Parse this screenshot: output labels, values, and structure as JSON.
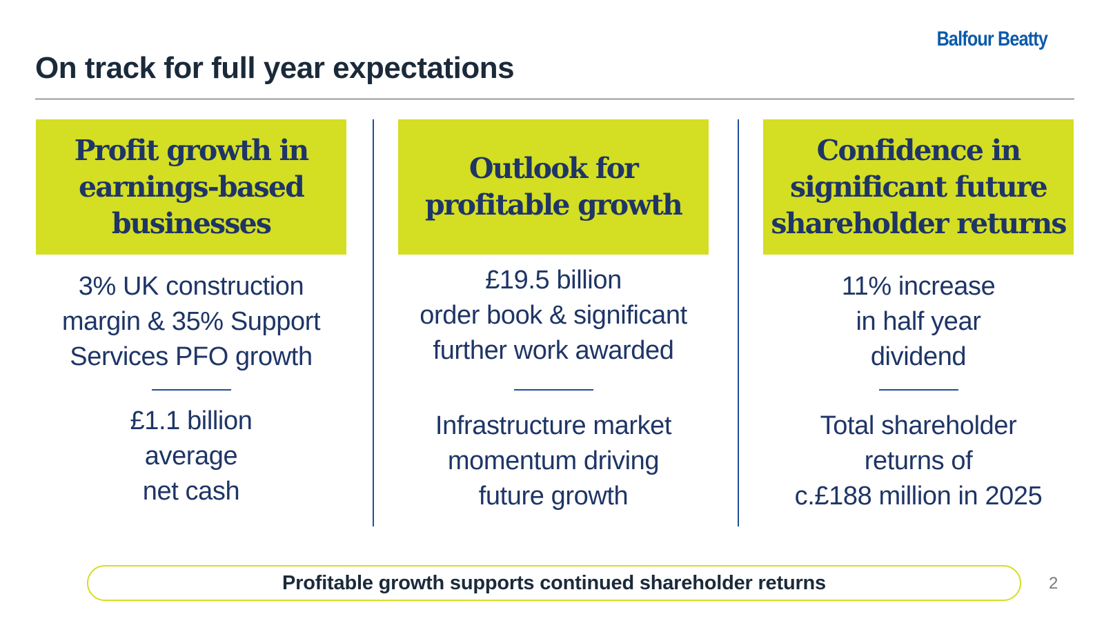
{
  "logo": "Balfour Beatty",
  "title": "On track for full year expectations",
  "columns": [
    {
      "heading": "Profit growth in earnings-based businesses",
      "top_lines": [
        "3% UK construction",
        "margin & 35% Support",
        "Services PFO growth"
      ],
      "bottom_lines": [
        "£1.1 billion",
        "average",
        "net cash"
      ]
    },
    {
      "heading": "Outlook for profitable growth",
      "top_lines": [
        "£19.5 billion",
        "order book & significant",
        "further work awarded"
      ],
      "bottom_lines": [
        "Infrastructure market",
        "momentum driving",
        "future growth"
      ]
    },
    {
      "heading": "Confidence in significant future shareholder returns",
      "top_lines": [
        "11% increase",
        "in half year",
        "dividend"
      ],
      "bottom_lines": [
        "Total shareholder",
        "returns of",
        "c.£188 million in 2025"
      ]
    }
  ],
  "banner": "Profitable growth supports continued shareholder returns",
  "page_number": "2",
  "colors": {
    "accent_yellow": "#d4de23",
    "navy_text": "#1e3566",
    "brand_blue": "#0a5aa8",
    "divider_blue": "#1e4e9a"
  }
}
